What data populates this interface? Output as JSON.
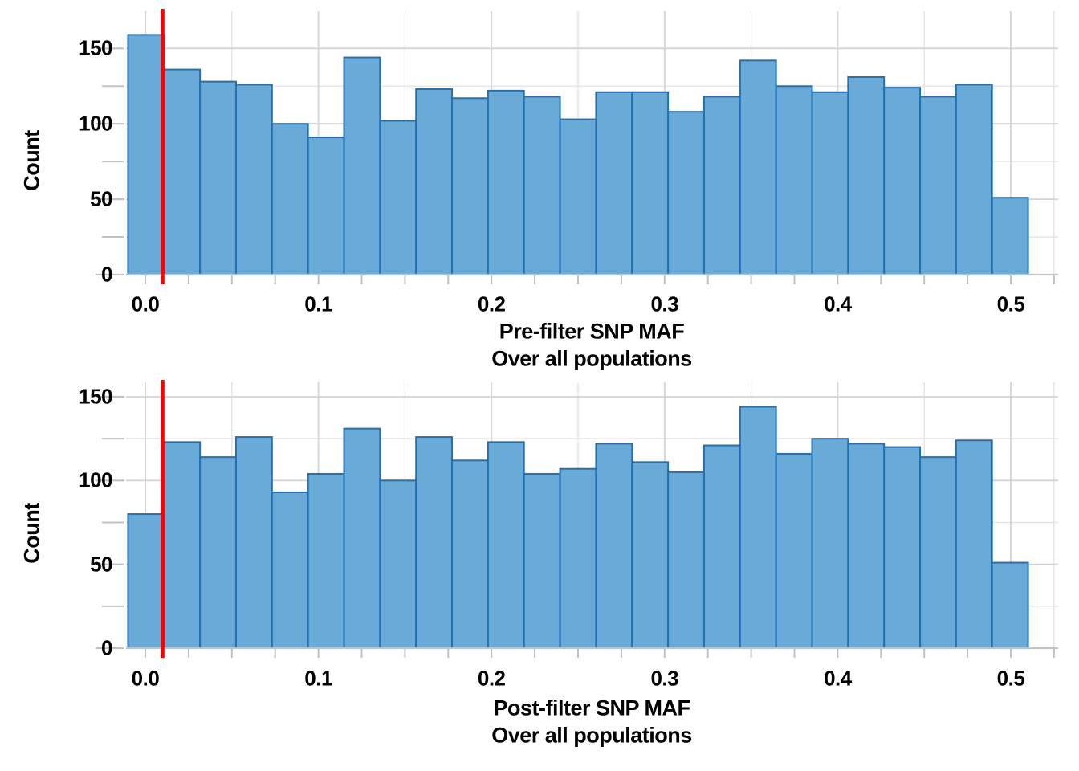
{
  "figure": {
    "background": "#ffffff",
    "description": "Two stacked histograms of SNP minor allele frequency, before and after filtering, with a red MAF threshold line at 0.01"
  },
  "colors": {
    "bar_fill": "#6aaad7",
    "bar_stroke": "#2171b5",
    "threshold_line": "#ff0000",
    "grid_major": "#d4d4d4",
    "grid_minor": "#e2e2e2",
    "axis": "#c2c2c2",
    "text": "#000000"
  },
  "charts": [
    {
      "ylabel": "Count",
      "xlabel_line1": "Pre-filter SNP MAF",
      "xlabel_line2": "Over all populations",
      "x_tick_labels": [
        "0.0",
        "0.1",
        "0.2",
        "0.3",
        "0.4",
        "0.5"
      ],
      "y_tick_labels": [
        "0",
        "50",
        "100",
        "150"
      ]
    },
    {
      "ylabel": "Count",
      "xlabel_line1": "Post-filter SNP MAF",
      "xlabel_line2": "Over all populations",
      "x_tick_labels": [
        "0.0",
        "0.1",
        "0.2",
        "0.3",
        "0.4",
        "0.5"
      ],
      "y_tick_labels": [
        "0",
        "50",
        "100",
        "150"
      ]
    }
  ],
  "chart_data": [
    {
      "type": "bar",
      "subtype": "histogram",
      "title": "Pre-filter SNP MAF",
      "subtitle": "Over all populations",
      "xlabel": "Pre-filter SNP MAF",
      "ylabel": "Count",
      "bin_start": -0.01,
      "bin_width": 0.0208,
      "bin_centers": [
        0.0004,
        0.0212,
        0.042,
        0.0628,
        0.0836,
        0.1044,
        0.1252,
        0.146,
        0.1668,
        0.1876,
        0.2084,
        0.2292,
        0.25,
        0.2708,
        0.2916,
        0.3124,
        0.3332,
        0.354,
        0.3748,
        0.3956,
        0.4164,
        0.4372,
        0.458,
        0.4788,
        0.4996
      ],
      "counts": [
        159,
        136,
        128,
        126,
        100,
        91,
        144,
        102,
        123,
        117,
        122,
        118,
        103,
        121,
        121,
        108,
        118,
        142,
        125,
        121,
        131,
        124,
        118,
        126,
        51
      ],
      "x_ticks": [
        0,
        0.1,
        0.2,
        0.3,
        0.4,
        0.5
      ],
      "x_minor_gridlines": [
        0.05,
        0.15,
        0.25,
        0.35,
        0.45,
        0.525
      ],
      "x_tick_mark_step": 0.025,
      "x_tick_mark_max": 0.525,
      "y_ticks": [
        0,
        50,
        100,
        150
      ],
      "y_minor_gridlines": [
        25,
        75,
        125
      ],
      "xlim": [
        -0.0111,
        0.5274
      ],
      "ylim": [
        0,
        174.9
      ],
      "vline": {
        "x": 0.01,
        "color": "#ff0000"
      },
      "grid": true,
      "legend": false
    },
    {
      "type": "bar",
      "subtype": "histogram",
      "title": "Post-filter SNP MAF",
      "subtitle": "Over all populations",
      "xlabel": "Post-filter SNP MAF",
      "ylabel": "Count",
      "bin_start": -0.01,
      "bin_width": 0.0208,
      "bin_centers": [
        0.0004,
        0.0212,
        0.042,
        0.0628,
        0.0836,
        0.1044,
        0.1252,
        0.146,
        0.1668,
        0.1876,
        0.2084,
        0.2292,
        0.25,
        0.2708,
        0.2916,
        0.3124,
        0.3332,
        0.354,
        0.3748,
        0.3956,
        0.4164,
        0.4372,
        0.458,
        0.4788,
        0.4996
      ],
      "counts": [
        80,
        123,
        114,
        126,
        93,
        104,
        131,
        100,
        126,
        112,
        123,
        104,
        107,
        122,
        111,
        105,
        121,
        144,
        116,
        125,
        122,
        120,
        114,
        124,
        51
      ],
      "x_ticks": [
        0,
        0.1,
        0.2,
        0.3,
        0.4,
        0.5
      ],
      "x_minor_gridlines": [
        0.05,
        0.15,
        0.25,
        0.35,
        0.45,
        0.525
      ],
      "x_tick_mark_step": 0.025,
      "x_tick_mark_max": 0.525,
      "y_ticks": [
        0,
        50,
        100,
        150
      ],
      "y_minor_gridlines": [
        25,
        75,
        125
      ],
      "xlim": [
        -0.0111,
        0.5274
      ],
      "ylim": [
        0,
        158.4
      ],
      "vline": {
        "x": 0.01,
        "color": "#ff0000"
      },
      "grid": true,
      "legend": false
    }
  ]
}
